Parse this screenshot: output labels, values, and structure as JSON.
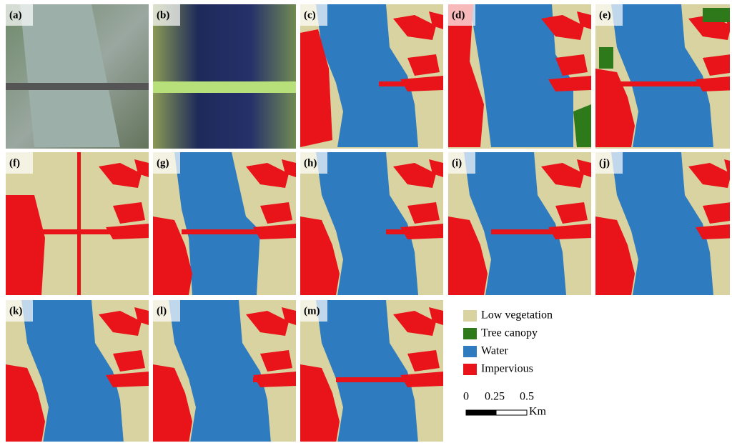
{
  "panel_labels": [
    "(a)",
    "(b)",
    "(c)",
    "(d)",
    "(e)",
    "(f)",
    "(g)",
    "(h)",
    "(i)",
    "(j)",
    "(k)",
    "(l)",
    "(m)"
  ],
  "legend": [
    {
      "name": "Low vegetation",
      "color": "#d8d3a0"
    },
    {
      "name": "Tree canopy",
      "color": "#2e7a1a"
    },
    {
      "name": "Water",
      "color": "#2f7bbf"
    },
    {
      "name": "Impervious",
      "color": "#e8141a"
    }
  ],
  "scale_bar": {
    "labels": [
      "0",
      "0.25",
      "0.5"
    ],
    "unit": "Km"
  }
}
